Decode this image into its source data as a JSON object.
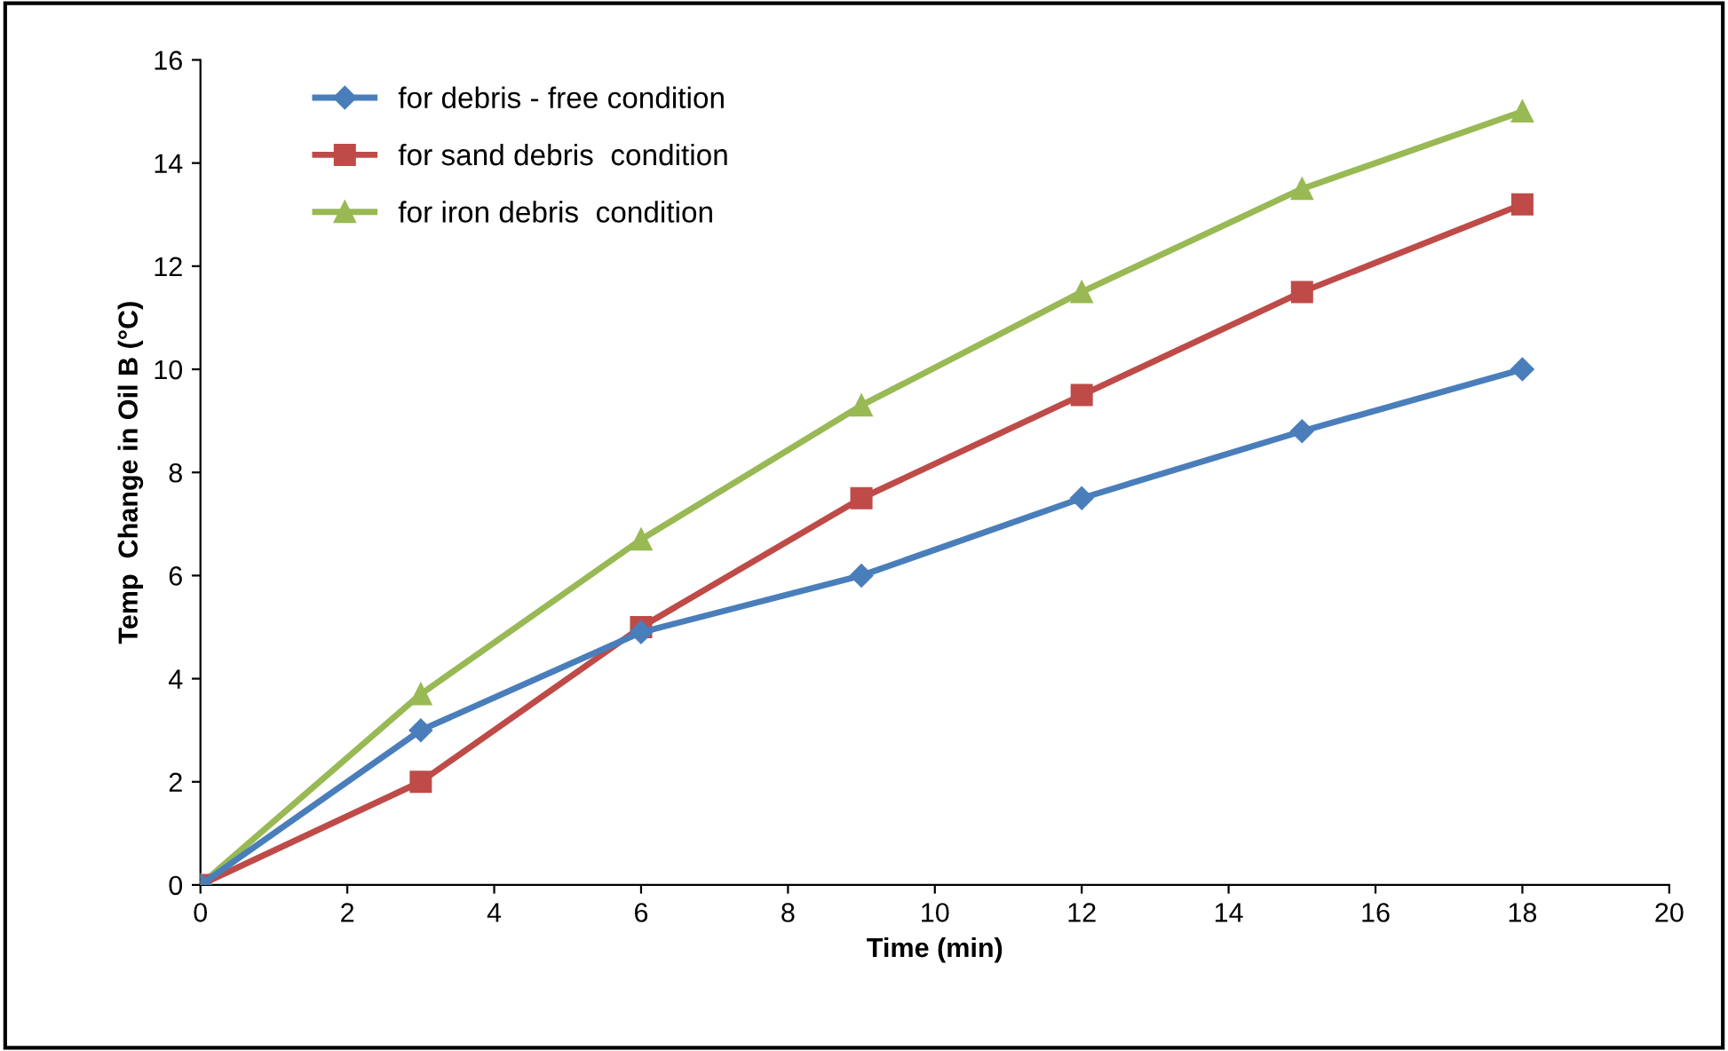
{
  "chart_data": {
    "type": "line",
    "xlabel": "Time (min)",
    "ylabel": "Temp  Change in Oil B (°C)",
    "x": [
      0,
      3,
      6,
      9,
      12,
      15,
      18
    ],
    "series": [
      {
        "name": "for debris - free condition",
        "color": "#4a7ebb",
        "marker": "diamond",
        "values": [
          0,
          3,
          4.9,
          6,
          7.5,
          8.8,
          10
        ]
      },
      {
        "name": "for sand debris  condition",
        "color": "#be4b48",
        "marker": "square",
        "values": [
          0,
          2,
          5,
          7.5,
          9.5,
          11.5,
          13.2
        ]
      },
      {
        "name": "for iron debris  condition",
        "color": "#98b954",
        "marker": "triangle",
        "values": [
          0,
          3.7,
          6.7,
          9.3,
          11.5,
          13.5,
          15
        ]
      }
    ],
    "xlim": [
      0,
      20
    ],
    "xticks": [
      0,
      2,
      4,
      6,
      8,
      10,
      12,
      14,
      16,
      18,
      20
    ],
    "ylim": [
      0,
      16
    ],
    "yticks": [
      0,
      2,
      4,
      6,
      8,
      10,
      12,
      14,
      16
    ],
    "grid": false,
    "legend": "top left",
    "line_style": "solid"
  }
}
